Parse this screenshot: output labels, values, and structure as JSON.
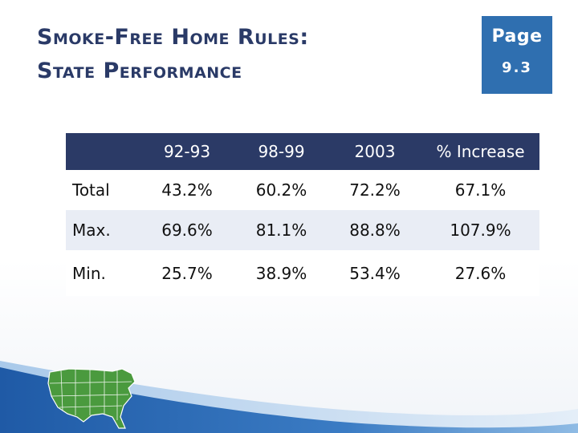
{
  "title": {
    "line1": "Smoke-Free Home Rules:",
    "line2": "State Performance"
  },
  "page_badge": {
    "label": "Page",
    "number": "9.3"
  },
  "table": {
    "columns": [
      "",
      "92-93",
      "98-99",
      "2003",
      "% Increase"
    ],
    "rows": [
      {
        "label": "Total",
        "values": [
          "43.2%",
          "60.2%",
          "72.2%",
          "67.1%"
        ]
      },
      {
        "label": "Max.",
        "values": [
          "69.6%",
          "81.1%",
          "88.8%",
          "107.9%"
        ]
      },
      {
        "label": "Min.",
        "values": [
          "25.7%",
          "38.9%",
          "53.4%",
          "27.6%"
        ]
      }
    ]
  },
  "colors": {
    "title": "#2a3a67",
    "badge": "#2f6fb0",
    "header": "#2b3a66",
    "stripe": "#e9edf5",
    "wave_dark": "#1f5aa6",
    "wave_light": "#6fa3d8",
    "map_green": "#4a9a3e"
  },
  "decor": {
    "map_icon": "us-map-icon",
    "wave": "blue-wave-graphic"
  }
}
